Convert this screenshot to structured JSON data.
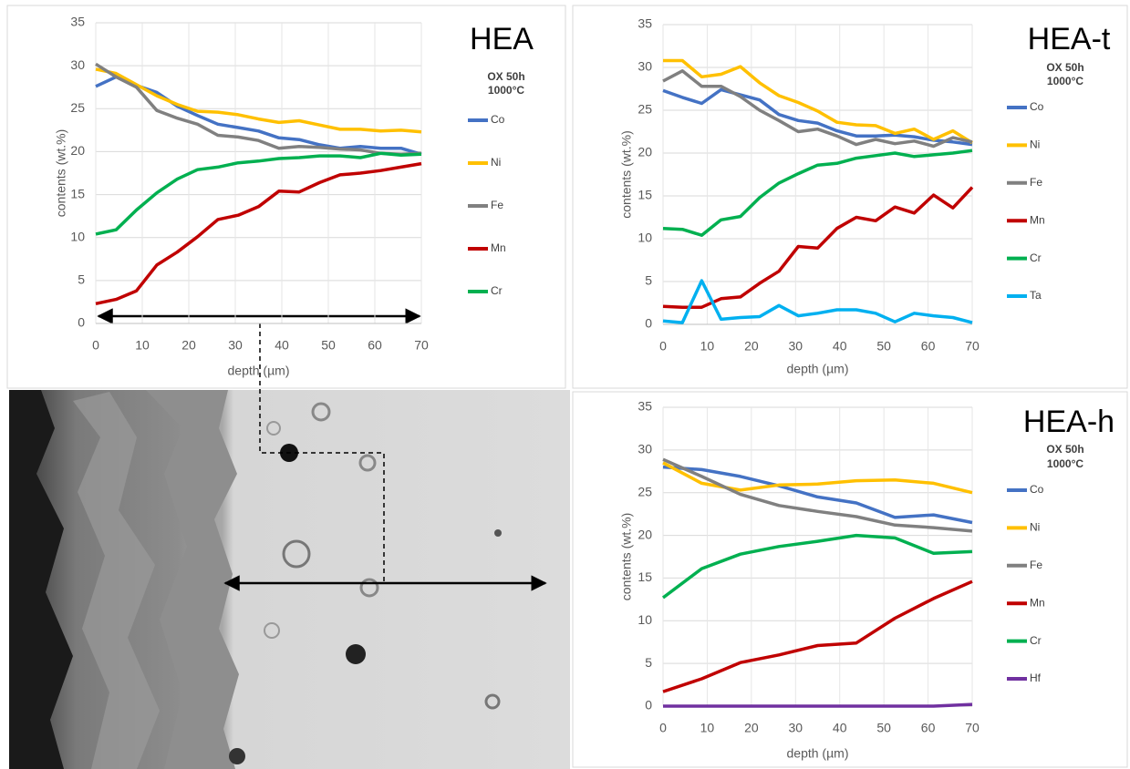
{
  "chart_data": [
    {
      "type": "line",
      "title": "HEA",
      "legend_title": [
        "OX 50h",
        "1000°C"
      ],
      "x_label": "depth (µm)",
      "y_label": "contents (wt.%)",
      "x": [
        0,
        4.375,
        8.75,
        13.125,
        17.5,
        21.875,
        26.25,
        30.625,
        35,
        39.375,
        43.75,
        48.125,
        52.5,
        56.875,
        61.25,
        65.625,
        70
      ],
      "series": [
        {
          "name": "Co",
          "color": "#4472c4",
          "values": [
            27.6,
            28.7,
            27.7,
            26.9,
            25.3,
            24.2,
            23.2,
            22.8,
            22.4,
            21.6,
            21.4,
            20.8,
            20.4,
            20.6,
            20.4,
            20.4,
            19.7
          ]
        },
        {
          "name": "Ni",
          "color": "#ffc000",
          "values": [
            29.6,
            29.1,
            27.8,
            26.5,
            25.5,
            24.7,
            24.6,
            24.3,
            23.8,
            23.4,
            23.6,
            23.1,
            22.6,
            22.6,
            22.4,
            22.5,
            22.3
          ]
        },
        {
          "name": "Fe",
          "color": "#808080",
          "values": [
            30.2,
            28.7,
            27.5,
            24.8,
            23.9,
            23.2,
            21.9,
            21.7,
            21.3,
            20.4,
            20.6,
            20.5,
            20.3,
            20.2,
            19.8,
            19.7,
            19.8
          ]
        },
        {
          "name": "Mn",
          "color": "#c00000",
          "values": [
            2.3,
            2.8,
            3.8,
            6.8,
            8.3,
            10.1,
            12.1,
            12.6,
            13.6,
            15.4,
            15.3,
            16.4,
            17.3,
            17.5,
            17.8,
            18.2,
            18.6
          ]
        },
        {
          "name": "Cr",
          "color": "#00b050",
          "values": [
            10.4,
            10.9,
            13.2,
            15.2,
            16.8,
            17.9,
            18.2,
            18.7,
            18.9,
            19.2,
            19.3,
            19.5,
            19.5,
            19.3,
            19.8,
            19.6,
            19.7
          ]
        }
      ],
      "xlim": [
        0,
        70
      ],
      "xticks": [
        0,
        10,
        20,
        30,
        40,
        50,
        60,
        70
      ],
      "ylim": [
        0,
        35
      ],
      "yticks": [
        0,
        5,
        10,
        15,
        20,
        25,
        30,
        35
      ],
      "grid": true
    },
    {
      "type": "line",
      "title": "HEA-t",
      "legend_title": [
        "OX 50h",
        "1000°C"
      ],
      "x_label": "depth (µm)",
      "y_label": "contents (wt.%)",
      "x": [
        0,
        4.375,
        8.75,
        13.125,
        17.5,
        21.875,
        26.25,
        30.625,
        35,
        39.375,
        43.75,
        48.125,
        52.5,
        56.875,
        61.25,
        65.625,
        70
      ],
      "series": [
        {
          "name": "Co",
          "color": "#4472c4",
          "values": [
            27.3,
            26.5,
            25.8,
            27.4,
            26.8,
            26.2,
            24.5,
            23.8,
            23.5,
            22.6,
            22.0,
            22.0,
            22.1,
            21.9,
            21.5,
            21.3,
            21.0
          ]
        },
        {
          "name": "Ni",
          "color": "#ffc000",
          "values": [
            30.8,
            30.8,
            28.9,
            29.2,
            30.1,
            28.2,
            26.7,
            25.9,
            24.9,
            23.6,
            23.3,
            23.2,
            22.3,
            22.8,
            21.6,
            22.6,
            21.2
          ]
        },
        {
          "name": "Fe",
          "color": "#808080",
          "values": [
            28.4,
            29.6,
            27.8,
            27.8,
            26.6,
            25.0,
            23.8,
            22.5,
            22.8,
            22.0,
            21.0,
            21.6,
            21.1,
            21.4,
            20.8,
            21.8,
            21.3
          ]
        },
        {
          "name": "Mn",
          "color": "#c00000",
          "values": [
            2.1,
            2.0,
            2.0,
            3.0,
            3.2,
            4.8,
            6.2,
            9.1,
            8.9,
            11.2,
            12.5,
            12.1,
            13.7,
            13.0,
            15.1,
            13.6,
            16.0
          ]
        },
        {
          "name": "Cr",
          "color": "#00b050",
          "values": [
            11.2,
            11.1,
            10.4,
            12.2,
            12.6,
            14.8,
            16.5,
            17.6,
            18.6,
            18.8,
            19.4,
            19.7,
            20.0,
            19.6,
            19.8,
            20.0,
            20.3
          ]
        },
        {
          "name": "Ta",
          "color": "#00b0f0",
          "values": [
            0.4,
            0.2,
            5.1,
            0.6,
            0.8,
            0.9,
            2.2,
            1.0,
            1.3,
            1.7,
            1.7,
            1.3,
            0.3,
            1.3,
            1.0,
            0.8,
            0.2
          ]
        }
      ],
      "xlim": [
        0,
        70
      ],
      "xticks": [
        0,
        10,
        20,
        30,
        40,
        50,
        60,
        70
      ],
      "ylim": [
        0,
        35
      ],
      "yticks": [
        0,
        5,
        10,
        15,
        20,
        25,
        30,
        35
      ],
      "grid": true
    },
    {
      "type": "line",
      "title": "HEA-h",
      "legend_title": [
        "OX 50h",
        "1000°C"
      ],
      "x_label": "depth (µm)",
      "y_label": "contents (wt.%)",
      "x": [
        0,
        8.75,
        17.5,
        26.25,
        35,
        43.75,
        52.5,
        61.25,
        70
      ],
      "series": [
        {
          "name": "Co",
          "color": "#4472c4",
          "values": [
            28.0,
            27.7,
            26.9,
            25.8,
            24.5,
            23.8,
            22.1,
            22.4,
            21.5
          ]
        },
        {
          "name": "Ni",
          "color": "#ffc000",
          "values": [
            28.5,
            26.1,
            25.3,
            25.9,
            26.0,
            26.4,
            26.5,
            26.1,
            25.0
          ]
        },
        {
          "name": "Fe",
          "color": "#808080",
          "values": [
            28.9,
            26.9,
            24.8,
            23.5,
            22.8,
            22.2,
            21.2,
            20.9,
            20.5
          ]
        },
        {
          "name": "Mn",
          "color": "#c00000",
          "values": [
            1.7,
            3.2,
            5.1,
            6.0,
            7.1,
            7.4,
            10.3,
            12.6,
            14.6
          ]
        },
        {
          "name": "Cr",
          "color": "#00b050",
          "values": [
            12.7,
            16.1,
            17.8,
            18.7,
            19.3,
            20.0,
            19.7,
            17.9,
            18.1
          ]
        },
        {
          "name": "Hf",
          "color": "#7030a0",
          "values": [
            0,
            0,
            0,
            0,
            0,
            0,
            0,
            0,
            0.2
          ]
        }
      ],
      "xlim": [
        0,
        70
      ],
      "xticks": [
        0,
        10,
        20,
        30,
        40,
        50,
        60,
        70
      ],
      "ylim": [
        0,
        35
      ],
      "yticks": [
        0,
        5,
        10,
        15,
        20,
        25,
        30,
        35
      ],
      "grid": true
    }
  ]
}
